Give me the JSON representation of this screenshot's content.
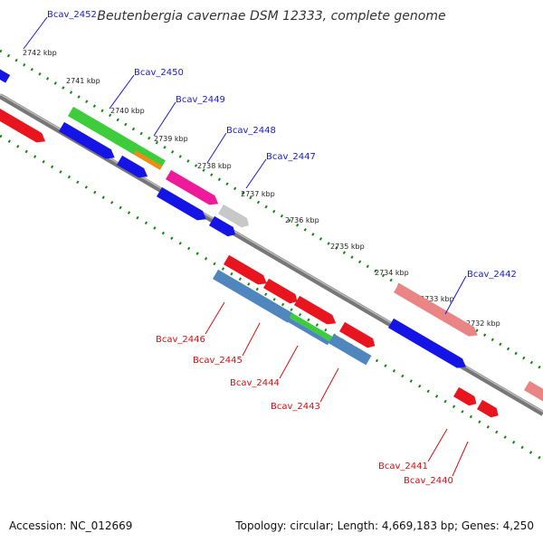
{
  "title": "Beutenbergia cavernae DSM 12333, complete genome",
  "footer": {
    "accession": "Accession: NC_012669",
    "topology": "Topology: circular; Length: 4,669,183 bp; Genes: 4,250"
  },
  "ticks": [
    "2742 kbp",
    "2741 kbp",
    "2740 kbp",
    "2739 kbp",
    "2738 kbp",
    "2737 kbp",
    "2736 kbp",
    "2735 kbp",
    "2734 kbp",
    "2733 kbp",
    "2732 kbp"
  ],
  "gene_labels": {
    "top": [
      "Bcav_2452",
      "Bcav_2450",
      "Bcav_2449",
      "Bcav_2448",
      "Bcav_2447",
      "Bcav_2442"
    ],
    "bottom": [
      "Bcav_2446",
      "Bcav_2445",
      "Bcav_2444",
      "Bcav_2443",
      "Bcav_2441",
      "Bcav_2440"
    ]
  },
  "colors": {
    "backbone": "#777777",
    "forward_cds": "#e8141e",
    "reverse_cds": "#1414e6",
    "rrna": "#3ccc3c",
    "trna": "#f08c14",
    "pink": "#ee1a99",
    "grey_gene": "#c8c8c8",
    "steel": "#4f86be",
    "salmon": "#ea8585",
    "tick_marks": "#118811",
    "label_blue": "#1a1ad0",
    "label_red": "#d01010"
  }
}
